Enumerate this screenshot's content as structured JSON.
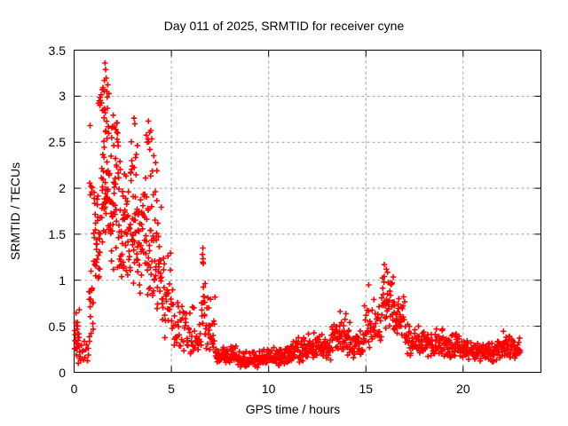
{
  "chart_data": {
    "type": "scatter",
    "title": "Day 011 of 2025, SRMTID for receiver cyne",
    "xlabel": "GPS time / hours",
    "ylabel": "SRMTID / TECUs",
    "xlim": [
      0,
      24
    ],
    "ylim": [
      0,
      3.5
    ],
    "xticks": [
      "0",
      "5",
      "10",
      "15",
      "20"
    ],
    "yticks": [
      "0",
      "0.5",
      "1",
      "1.5",
      "2",
      "2.5",
      "3",
      "3.5"
    ],
    "grid": true,
    "grid_color": "#9e9e9e",
    "border_color": "#000000",
    "marker": "plus",
    "marker_color": "#ff0000",
    "marker_size": 6.5,
    "x_data_range": [
      0.02,
      22.95
    ],
    "y_max_observed": 3.36,
    "series": [
      {
        "name": "SRMTID",
        "peak_points": [
          [
            1.59,
            3.36
          ],
          [
            1.62,
            3.29
          ],
          [
            1.56,
            3.17
          ],
          [
            1.68,
            3.05
          ],
          [
            0.82,
            2.68
          ],
          [
            3.08,
            2.76
          ],
          [
            3.12,
            2.7
          ],
          [
            3.82,
            2.73
          ],
          [
            6.62,
            1.35
          ],
          [
            6.6,
            1.28
          ],
          [
            6.64,
            1.18
          ],
          [
            13.68,
            0.66
          ],
          [
            15.15,
            0.95
          ],
          [
            15.95,
            1.17
          ],
          [
            16.05,
            1.12
          ]
        ],
        "density_segments": [
          [
            0.02,
            0.3,
            28,
            0.05,
            0.8,
            0.35
          ],
          [
            0.3,
            0.8,
            14,
            0.04,
            0.5,
            0.15
          ],
          [
            0.75,
            1.0,
            16,
            0.3,
            1.3,
            0.8
          ],
          [
            0.78,
            0.95,
            5,
            1.8,
            2.3,
            2.0
          ],
          [
            1.0,
            1.35,
            36,
            0.9,
            2.3,
            1.5
          ],
          [
            1.25,
            1.45,
            8,
            2.8,
            3.1,
            2.95
          ],
          [
            1.4,
            1.85,
            48,
            1.2,
            2.6,
            1.9
          ],
          [
            1.45,
            1.8,
            18,
            2.55,
            3.25,
            2.9
          ],
          [
            1.85,
            2.35,
            48,
            1.0,
            2.9,
            1.8
          ],
          [
            1.9,
            2.2,
            6,
            2.6,
            2.9,
            2.7
          ],
          [
            2.35,
            2.9,
            46,
            0.8,
            2.5,
            1.5
          ],
          [
            2.9,
            3.35,
            42,
            0.9,
            2.76,
            1.6
          ],
          [
            3.35,
            4.0,
            46,
            0.7,
            2.45,
            1.3
          ],
          [
            3.7,
            4.0,
            8,
            2.3,
            2.73,
            2.5
          ],
          [
            4.0,
            4.5,
            36,
            0.5,
            2.0,
            1.1
          ],
          [
            4.0,
            4.3,
            4,
            2.0,
            2.45,
            2.2
          ],
          [
            4.5,
            5.0,
            30,
            0.3,
            1.5,
            0.7
          ],
          [
            5.0,
            5.6,
            28,
            0.2,
            1.0,
            0.5
          ],
          [
            5.6,
            6.3,
            30,
            0.15,
            0.75,
            0.35
          ],
          [
            6.3,
            6.55,
            10,
            0.2,
            0.55,
            0.3
          ],
          [
            6.55,
            6.75,
            16,
            0.3,
            1.35,
            0.8
          ],
          [
            6.75,
            7.25,
            26,
            0.15,
            0.85,
            0.4
          ],
          [
            7.25,
            8.5,
            70,
            0.07,
            0.3,
            0.15
          ],
          [
            8.5,
            9.6,
            60,
            0.05,
            0.25,
            0.12
          ],
          [
            9.6,
            11.0,
            80,
            0.07,
            0.3,
            0.16
          ],
          [
            11.0,
            11.8,
            45,
            0.1,
            0.42,
            0.22
          ],
          [
            11.8,
            13.2,
            80,
            0.12,
            0.45,
            0.25
          ],
          [
            13.2,
            14.2,
            55,
            0.18,
            0.66,
            0.38
          ],
          [
            14.2,
            14.9,
            38,
            0.15,
            0.5,
            0.3
          ],
          [
            14.9,
            15.45,
            26,
            0.2,
            0.95,
            0.5
          ],
          [
            15.45,
            15.8,
            16,
            0.25,
            0.75,
            0.45
          ],
          [
            15.8,
            16.45,
            40,
            0.4,
            1.17,
            0.8
          ],
          [
            16.45,
            17.0,
            32,
            0.3,
            0.9,
            0.5
          ],
          [
            17.0,
            18.0,
            55,
            0.18,
            0.55,
            0.32
          ],
          [
            18.0,
            19.8,
            95,
            0.15,
            0.5,
            0.3
          ],
          [
            19.8,
            20.6,
            45,
            0.12,
            0.4,
            0.24
          ],
          [
            20.6,
            21.6,
            55,
            0.1,
            0.35,
            0.2
          ],
          [
            21.6,
            22.4,
            45,
            0.12,
            0.45,
            0.25
          ],
          [
            22.4,
            22.95,
            30,
            0.12,
            0.4,
            0.22
          ]
        ]
      }
    ]
  }
}
